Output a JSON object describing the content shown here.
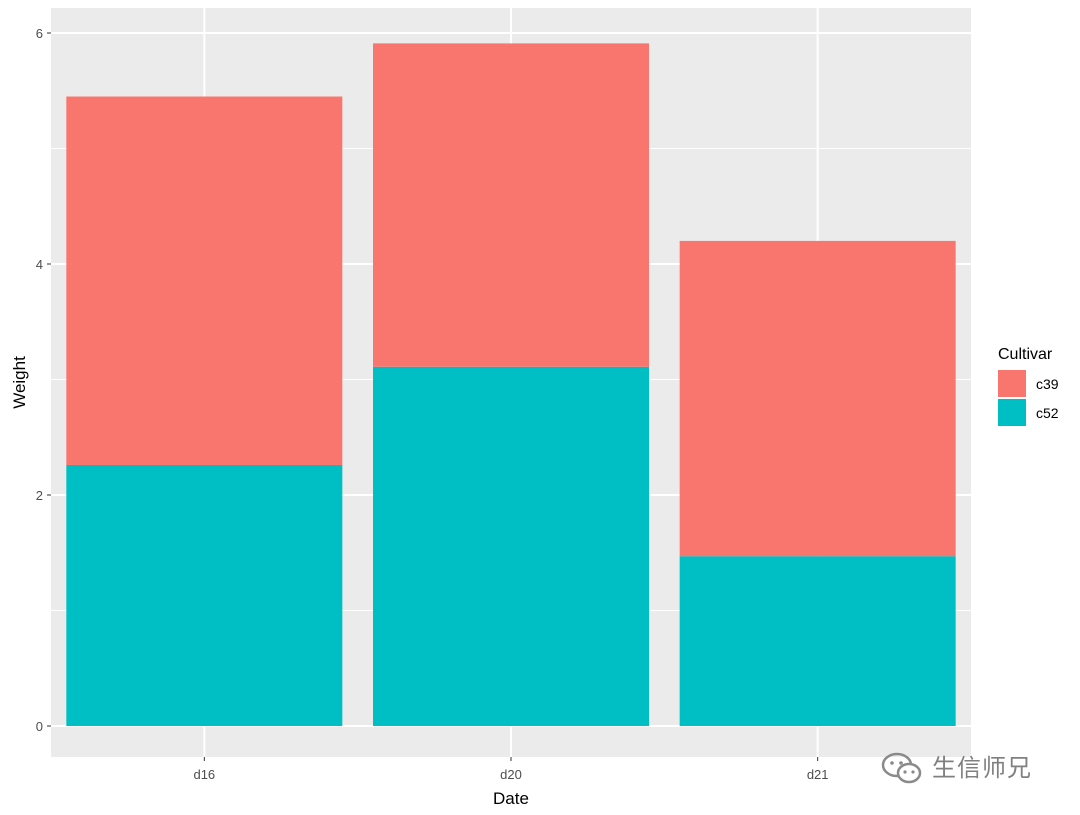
{
  "chart_data": {
    "type": "bar",
    "stacked": true,
    "categories": [
      "d16",
      "d20",
      "d21"
    ],
    "series": [
      {
        "name": "c52",
        "color": "#00BFC4",
        "values": [
          2.26,
          3.11,
          1.47
        ]
      },
      {
        "name": "c39",
        "color": "#F8766D",
        "values": [
          3.19,
          2.8,
          2.73
        ]
      }
    ],
    "xlabel": "Date",
    "ylabel": "Weight",
    "ylim": [
      0,
      6
    ],
    "yticks": [
      0,
      2,
      4,
      6
    ],
    "grid": true,
    "legend": {
      "title": "Cultivar",
      "position": "right",
      "entries": [
        {
          "label": "c39",
          "color": "#F8766D"
        },
        {
          "label": "c52",
          "color": "#00BFC4"
        }
      ]
    },
    "panel_background": "#EBEBEB",
    "grid_color": "#FFFFFF"
  },
  "watermark": {
    "text": "生信师兄",
    "icon": "wechat-icon"
  }
}
